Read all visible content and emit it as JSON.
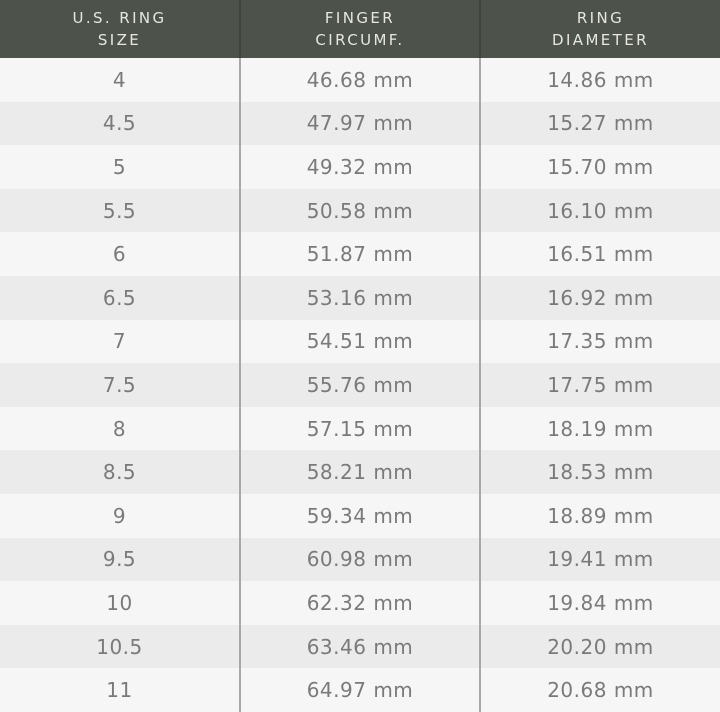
{
  "header": {
    "columns": [
      {
        "line1": "U.S. RING",
        "line2": "SIZE"
      },
      {
        "line1": "FINGER",
        "line2": "CIRCUMF."
      },
      {
        "line1": "RING",
        "line2": "DIAMETER"
      }
    ]
  },
  "colors": {
    "header_bg": "#4d524a",
    "row_light": "#f6f6f6",
    "row_dark": "#ebebeb",
    "text": "#7a7a7a"
  },
  "rows": [
    [
      "4",
      "46.68 mm",
      "14.86 mm"
    ],
    [
      "4.5",
      "47.97 mm",
      "15.27 mm"
    ],
    [
      "5",
      "49.32 mm",
      "15.70 mm"
    ],
    [
      "5.5",
      "50.58 mm",
      "16.10 mm"
    ],
    [
      "6",
      "51.87 mm",
      "16.51 mm"
    ],
    [
      "6.5",
      "53.16 mm",
      "16.92 mm"
    ],
    [
      "7",
      "54.51 mm",
      "17.35 mm"
    ],
    [
      "7.5",
      "55.76 mm",
      "17.75 mm"
    ],
    [
      "8",
      "57.15 mm",
      "18.19 mm"
    ],
    [
      "8.5",
      "58.21 mm",
      "18.53 mm"
    ],
    [
      "9",
      "59.34 mm",
      "18.89 mm"
    ],
    [
      "9.5",
      "60.98 mm",
      "19.41 mm"
    ],
    [
      "10",
      "62.32 mm",
      "19.84 mm"
    ],
    [
      "10.5",
      "63.46 mm",
      "20.20 mm"
    ],
    [
      "11",
      "64.97 mm",
      "20.68 mm"
    ]
  ]
}
